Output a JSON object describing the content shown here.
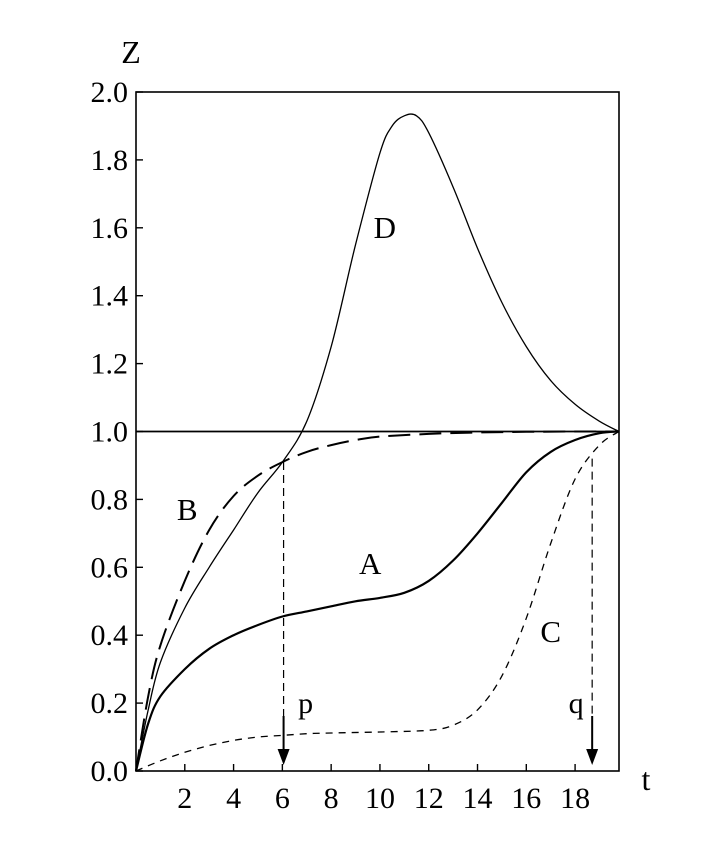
{
  "chart_data": {
    "type": "line",
    "xlabel": "t",
    "ylabel": "Z",
    "xlim": [
      0,
      19.8
    ],
    "ylim": [
      0,
      2.0
    ],
    "xticks": [
      2,
      4,
      6,
      8,
      10,
      12,
      14,
      16,
      18
    ],
    "xtick_labels": [
      "2",
      "4",
      "6",
      "8",
      "10",
      "12",
      "14",
      "16",
      "18"
    ],
    "yticks": [
      0,
      0.2,
      0.4,
      0.6,
      0.8,
      1.0,
      1.2,
      1.4,
      1.6,
      1.8,
      2.0
    ],
    "ytick_labels": [
      "0.0",
      "0.2",
      "0.4",
      "0.6",
      "0.8",
      "1.0",
      "1.2",
      "1.4",
      "1.6",
      "1.8",
      "2.0"
    ],
    "grid": false,
    "reference_line": {
      "y": 1.0
    },
    "series": [
      {
        "name": "A",
        "style": "solid",
        "color": "#000000",
        "x": [
          0,
          0.5,
          1,
          2,
          3,
          4,
          5,
          6,
          7,
          8,
          9,
          10,
          11,
          12,
          13,
          14,
          15,
          16,
          17,
          18,
          19,
          19.8
        ],
        "y": [
          0,
          0.14,
          0.22,
          0.3,
          0.36,
          0.4,
          0.43,
          0.455,
          0.47,
          0.485,
          0.5,
          0.51,
          0.525,
          0.56,
          0.62,
          0.7,
          0.79,
          0.88,
          0.94,
          0.975,
          0.995,
          1.0
        ]
      },
      {
        "name": "B",
        "style": "dashed",
        "color": "#000000",
        "x": [
          0,
          0.5,
          1,
          2,
          3,
          4,
          5,
          6,
          7,
          8,
          9,
          10,
          12,
          14,
          16,
          18,
          19.8
        ],
        "y": [
          0,
          0.22,
          0.37,
          0.56,
          0.71,
          0.81,
          0.87,
          0.91,
          0.94,
          0.96,
          0.975,
          0.985,
          0.993,
          0.997,
          0.999,
          1.0,
          1.0
        ]
      },
      {
        "name": "C",
        "style": "dashed",
        "color": "#000000",
        "x": [
          0,
          1,
          2,
          3,
          4,
          5,
          6,
          7,
          8,
          10,
          12,
          13,
          14,
          15,
          16,
          17,
          18,
          19,
          19.8
        ],
        "y": [
          0,
          0.03,
          0.055,
          0.075,
          0.09,
          0.1,
          0.105,
          0.11,
          0.112,
          0.115,
          0.12,
          0.135,
          0.18,
          0.28,
          0.45,
          0.67,
          0.86,
          0.96,
          1.0
        ]
      },
      {
        "name": "D",
        "style": "solid",
        "color": "#000000",
        "x": [
          0,
          0.5,
          1,
          2,
          3,
          4,
          5,
          6,
          7,
          8,
          9,
          10,
          10.5,
          11,
          11.5,
          12,
          13,
          14,
          15,
          16,
          17,
          18,
          19,
          19.8
        ],
        "y": [
          0,
          0.18,
          0.32,
          0.48,
          0.6,
          0.71,
          0.82,
          0.91,
          1.03,
          1.25,
          1.55,
          1.82,
          1.9,
          1.93,
          1.93,
          1.88,
          1.72,
          1.54,
          1.38,
          1.25,
          1.15,
          1.08,
          1.03,
          1.0
        ]
      }
    ],
    "annotations": [
      {
        "id": "curve-a",
        "text": "A",
        "x": 9.6,
        "y": 0.58
      },
      {
        "id": "curve-b",
        "text": "B",
        "x": 2.1,
        "y": 0.74
      },
      {
        "id": "curve-c",
        "text": "C",
        "x": 17.0,
        "y": 0.38
      },
      {
        "id": "curve-d",
        "text": "D",
        "x": 10.2,
        "y": 1.57
      }
    ],
    "markers": [
      {
        "id": "p",
        "label": "p",
        "x": 6.05,
        "y_from": 0.91
      },
      {
        "id": "q",
        "label": "q",
        "x": 18.7,
        "y_from": 0.92
      }
    ]
  }
}
